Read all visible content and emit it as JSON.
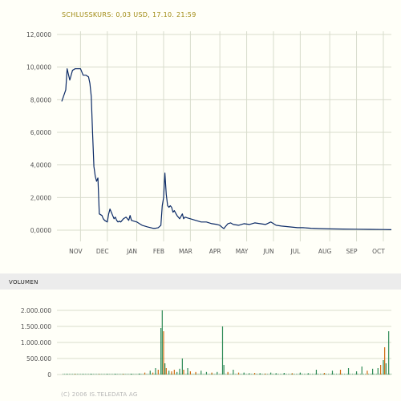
{
  "title": "SCHLUSSKURS: 0,03 USD, 17.10. 21:59",
  "volume_label": "VOLUMEN",
  "copyright": "(C) 2006 IS.TELEDATA AG",
  "colors": {
    "line": "#0b2a66",
    "grid": "#d8dccc",
    "volume_green": "#2e8b57",
    "volume_orange": "#d06a10"
  },
  "chart_data": [
    {
      "type": "line",
      "title": "SCHLUSSKURS: 0,03 USD, 17.10. 21:59",
      "ylim": [
        0,
        12
      ],
      "y_ticks": [
        0,
        2,
        4,
        6,
        8,
        10,
        12
      ],
      "y_tick_labels": [
        "0,0000",
        "2,0000",
        "4,0000",
        "6,0000",
        "8,0000",
        "10,0000",
        "12,0000"
      ],
      "xlim": [
        0,
        12.3
      ],
      "x_ticks": [
        0.7,
        1.7,
        2.8,
        3.8,
        4.8,
        5.9,
        6.9,
        7.9,
        8.9,
        10.0,
        11.0,
        12.0
      ],
      "x_tick_labels": [
        "NOV",
        "DEC",
        "JAN",
        "FEB",
        "MAR",
        "APR",
        "MAY",
        "JUN",
        "JUL",
        "AUG",
        "SEP",
        "OCT"
      ],
      "grid": true,
      "x": [
        0.0,
        0.15,
        0.2,
        0.3,
        0.4,
        0.5,
        0.7,
        0.8,
        0.9,
        1.0,
        1.05,
        1.1,
        1.15,
        1.2,
        1.25,
        1.3,
        1.35,
        1.4,
        1.5,
        1.55,
        1.6,
        1.7,
        1.75,
        1.8,
        1.85,
        1.9,
        1.95,
        2.0,
        2.05,
        2.1,
        2.15,
        2.2,
        2.3,
        2.4,
        2.5,
        2.55,
        2.6,
        2.7,
        2.8,
        2.9,
        3.0,
        3.2,
        3.4,
        3.5,
        3.6,
        3.7,
        3.75,
        3.8,
        3.85,
        3.9,
        3.95,
        4.0,
        4.05,
        4.1,
        4.15,
        4.2,
        4.3,
        4.4,
        4.5,
        4.55,
        4.6,
        4.7,
        4.8,
        5.0,
        5.2,
        5.4,
        5.6,
        5.8,
        5.9,
        6.0,
        6.05,
        6.1,
        6.2,
        6.3,
        6.4,
        6.6,
        6.8,
        7.0,
        7.2,
        7.4,
        7.6,
        7.8,
        8.0,
        8.2,
        8.5,
        8.8,
        9.0,
        9.3,
        9.6,
        10.0,
        10.5,
        11.0,
        11.5,
        12.0,
        12.3
      ],
      "y": [
        7.9,
        8.6,
        9.9,
        9.2,
        9.8,
        9.9,
        9.9,
        9.5,
        9.5,
        9.4,
        9.0,
        8.2,
        6.0,
        3.9,
        3.3,
        3.0,
        3.2,
        1.0,
        0.9,
        0.7,
        0.6,
        0.5,
        1.0,
        1.3,
        1.1,
        0.9,
        0.7,
        0.8,
        0.6,
        0.5,
        0.55,
        0.5,
        0.7,
        0.8,
        0.6,
        0.9,
        0.6,
        0.55,
        0.5,
        0.4,
        0.3,
        0.2,
        0.12,
        0.12,
        0.15,
        0.3,
        1.5,
        2.0,
        3.5,
        2.2,
        1.5,
        1.4,
        1.5,
        1.4,
        1.1,
        1.2,
        0.9,
        0.7,
        1.0,
        0.7,
        0.8,
        0.75,
        0.7,
        0.6,
        0.5,
        0.5,
        0.4,
        0.35,
        0.3,
        0.15,
        0.1,
        0.2,
        0.4,
        0.45,
        0.35,
        0.3,
        0.4,
        0.35,
        0.45,
        0.4,
        0.35,
        0.5,
        0.3,
        0.25,
        0.2,
        0.15,
        0.15,
        0.12,
        0.1,
        0.08,
        0.07,
        0.06,
        0.05,
        0.04,
        0.03
      ]
    },
    {
      "type": "bar",
      "title": "VOLUMEN",
      "ylim": [
        0,
        2000000
      ],
      "y_ticks": [
        0,
        500000,
        1000000,
        1500000,
        2000000
      ],
      "y_tick_labels": [
        "0",
        "500.000",
        "1.000.000",
        "1.500.000",
        "2.000.000"
      ],
      "grid": true,
      "bars": [
        {
          "x": 0.2,
          "value": 10000,
          "color": "green"
        },
        {
          "x": 0.5,
          "value": 15000,
          "color": "orange"
        },
        {
          "x": 0.8,
          "value": 10000,
          "color": "green"
        },
        {
          "x": 1.1,
          "value": 20000,
          "color": "green"
        },
        {
          "x": 1.4,
          "value": 12000,
          "color": "orange"
        },
        {
          "x": 1.7,
          "value": 15000,
          "color": "green"
        },
        {
          "x": 2.0,
          "value": 20000,
          "color": "green"
        },
        {
          "x": 2.3,
          "value": 18000,
          "color": "orange"
        },
        {
          "x": 2.6,
          "value": 25000,
          "color": "green"
        },
        {
          "x": 2.9,
          "value": 30000,
          "color": "green"
        },
        {
          "x": 3.1,
          "value": 60000,
          "color": "orange"
        },
        {
          "x": 3.3,
          "value": 120000,
          "color": "green"
        },
        {
          "x": 3.4,
          "value": 60000,
          "color": "orange"
        },
        {
          "x": 3.5,
          "value": 200000,
          "color": "green"
        },
        {
          "x": 3.6,
          "value": 150000,
          "color": "orange"
        },
        {
          "x": 3.7,
          "value": 1450000,
          "color": "green"
        },
        {
          "x": 3.75,
          "value": 2000000,
          "color": "green"
        },
        {
          "x": 3.8,
          "value": 1350000,
          "color": "orange"
        },
        {
          "x": 3.85,
          "value": 350000,
          "color": "green"
        },
        {
          "x": 3.9,
          "value": 200000,
          "color": "orange"
        },
        {
          "x": 4.0,
          "value": 120000,
          "color": "green"
        },
        {
          "x": 4.1,
          "value": 100000,
          "color": "orange"
        },
        {
          "x": 4.2,
          "value": 150000,
          "color": "orange"
        },
        {
          "x": 4.3,
          "value": 80000,
          "color": "green"
        },
        {
          "x": 4.4,
          "value": 180000,
          "color": "green"
        },
        {
          "x": 4.5,
          "value": 500000,
          "color": "green"
        },
        {
          "x": 4.55,
          "value": 150000,
          "color": "orange"
        },
        {
          "x": 4.7,
          "value": 200000,
          "color": "green"
        },
        {
          "x": 4.8,
          "value": 100000,
          "color": "orange"
        },
        {
          "x": 5.0,
          "value": 80000,
          "color": "orange"
        },
        {
          "x": 5.2,
          "value": 120000,
          "color": "green"
        },
        {
          "x": 5.4,
          "value": 80000,
          "color": "green"
        },
        {
          "x": 5.6,
          "value": 60000,
          "color": "orange"
        },
        {
          "x": 5.8,
          "value": 80000,
          "color": "green"
        },
        {
          "x": 6.0,
          "value": 1500000,
          "color": "green"
        },
        {
          "x": 6.05,
          "value": 300000,
          "color": "green"
        },
        {
          "x": 6.2,
          "value": 80000,
          "color": "orange"
        },
        {
          "x": 6.4,
          "value": 150000,
          "color": "green"
        },
        {
          "x": 6.6,
          "value": 60000,
          "color": "orange"
        },
        {
          "x": 6.8,
          "value": 60000,
          "color": "green"
        },
        {
          "x": 7.0,
          "value": 40000,
          "color": "green"
        },
        {
          "x": 7.2,
          "value": 50000,
          "color": "orange"
        },
        {
          "x": 7.4,
          "value": 40000,
          "color": "green"
        },
        {
          "x": 7.6,
          "value": 30000,
          "color": "orange"
        },
        {
          "x": 7.8,
          "value": 60000,
          "color": "green"
        },
        {
          "x": 8.0,
          "value": 40000,
          "color": "green"
        },
        {
          "x": 8.3,
          "value": 50000,
          "color": "green"
        },
        {
          "x": 8.6,
          "value": 40000,
          "color": "orange"
        },
        {
          "x": 8.9,
          "value": 60000,
          "color": "green"
        },
        {
          "x": 9.2,
          "value": 40000,
          "color": "green"
        },
        {
          "x": 9.5,
          "value": 150000,
          "color": "green"
        },
        {
          "x": 9.8,
          "value": 50000,
          "color": "orange"
        },
        {
          "x": 10.1,
          "value": 120000,
          "color": "green"
        },
        {
          "x": 10.4,
          "value": 150000,
          "color": "orange"
        },
        {
          "x": 10.7,
          "value": 200000,
          "color": "green"
        },
        {
          "x": 11.0,
          "value": 100000,
          "color": "green"
        },
        {
          "x": 11.2,
          "value": 250000,
          "color": "green"
        },
        {
          "x": 11.4,
          "value": 120000,
          "color": "orange"
        },
        {
          "x": 11.6,
          "value": 180000,
          "color": "green"
        },
        {
          "x": 11.8,
          "value": 200000,
          "color": "green"
        },
        {
          "x": 11.9,
          "value": 300000,
          "color": "orange"
        },
        {
          "x": 12.0,
          "value": 450000,
          "color": "green"
        },
        {
          "x": 12.05,
          "value": 850000,
          "color": "orange"
        },
        {
          "x": 12.1,
          "value": 350000,
          "color": "green"
        },
        {
          "x": 12.2,
          "value": 1350000,
          "color": "green"
        }
      ]
    }
  ]
}
